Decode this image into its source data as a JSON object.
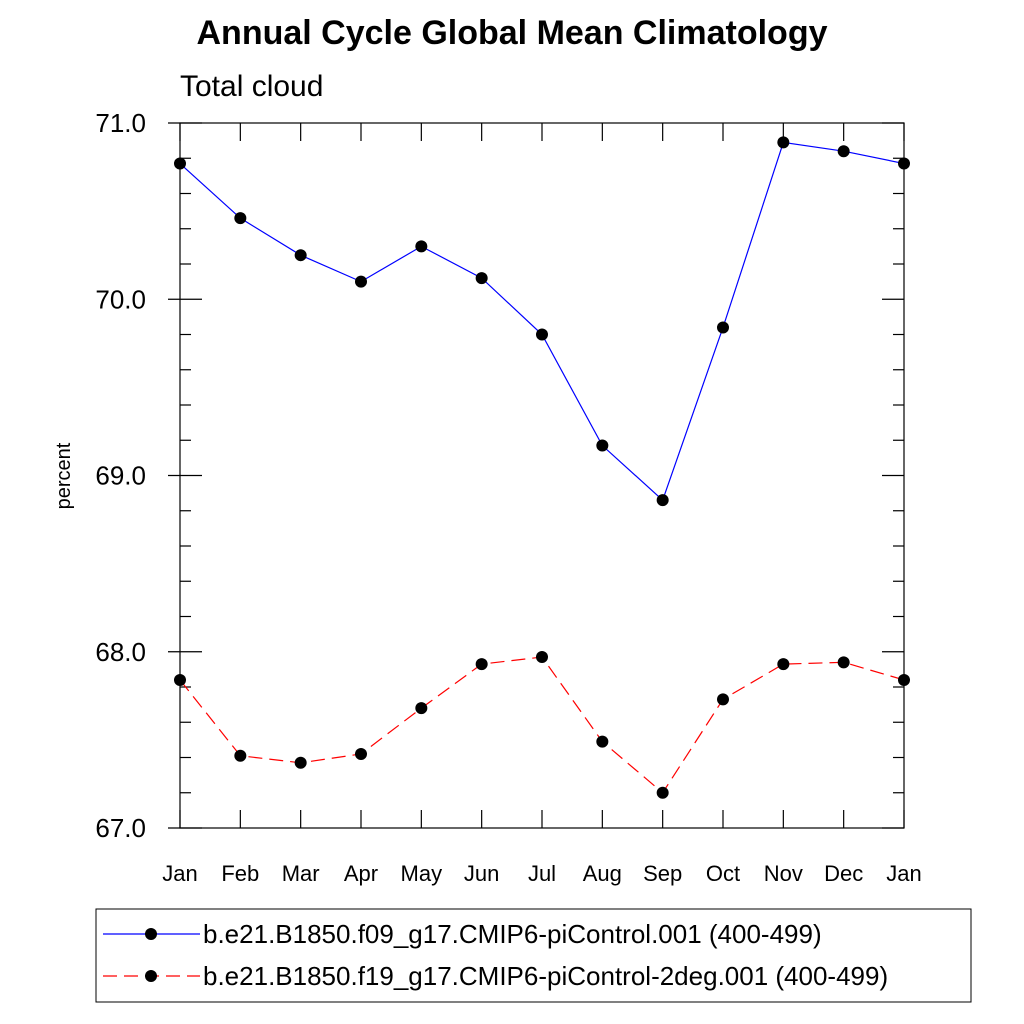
{
  "chart_data": {
    "type": "line",
    "title": "Annual Cycle Global Mean Climatology",
    "subtitle": "Total cloud",
    "xlabel": "",
    "ylabel": "percent",
    "categories": [
      "Jan",
      "Feb",
      "Mar",
      "Apr",
      "May",
      "Jun",
      "Jul",
      "Aug",
      "Sep",
      "Oct",
      "Nov",
      "Dec",
      "Jan"
    ],
    "ylim": [
      67.0,
      71.0
    ],
    "yticks": [
      "67.0",
      "68.0",
      "69.0",
      "70.0",
      "71.0"
    ],
    "grid": false,
    "legend_position": "bottom",
    "series": [
      {
        "name": "b.e21.B1850.f09_g17.CMIP6-piControl.001 (400-499)",
        "color": "#0000ff",
        "line_style": "solid",
        "marker": "filled-circle",
        "values": [
          70.77,
          70.46,
          70.25,
          70.1,
          70.3,
          70.12,
          69.8,
          69.17,
          68.86,
          69.84,
          70.89,
          70.84,
          70.77
        ]
      },
      {
        "name": "b.e21.B1850.f19_g17.CMIP6-piControl-2deg.001 (400-499)",
        "color": "#ff0000",
        "line_style": "dashed",
        "marker": "filled-circle",
        "values": [
          67.84,
          67.41,
          67.37,
          67.42,
          67.68,
          67.93,
          67.97,
          67.49,
          67.2,
          67.73,
          67.93,
          67.94,
          67.84
        ]
      }
    ]
  }
}
